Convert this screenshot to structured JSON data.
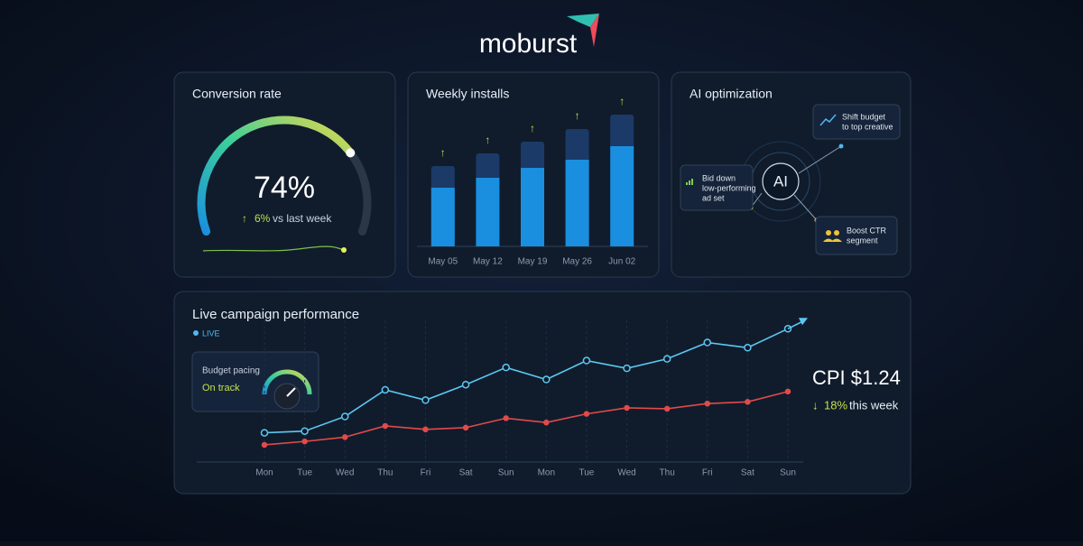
{
  "header": {
    "logo": "moburst"
  },
  "conversion": {
    "title": "Conversion rate",
    "value": 74,
    "value_label": "74%",
    "max": 100,
    "change": "6%",
    "change_text": "vs last week"
  },
  "installs": {
    "title": "Weekly installs",
    "categories": [
      "May 05",
      "May 12",
      "May 19",
      "May 26",
      "Jun 02"
    ],
    "values": [
      89,
      103,
      116,
      130,
      146
    ],
    "highlight": [
      65,
      76,
      87,
      96,
      111
    ],
    "ylim": [
      0,
      160
    ],
    "color": "#1a8fe0",
    "top_color": "#1c3a68"
  },
  "ai": {
    "title": "AI optimization",
    "center": "AI",
    "actions": [
      {
        "lines": [
          "Shift budget",
          "to top creative"
        ]
      },
      {
        "lines": [
          "Bid down",
          "low-performing",
          "ad set"
        ]
      },
      {
        "lines": [
          "Boost CTR",
          "segment"
        ]
      }
    ]
  },
  "campaign": {
    "title": "Live campaign performance",
    "status": "LIVE",
    "pacing": {
      "title": "Budget pacing",
      "status": "On track"
    },
    "cpi": "CPI $1.24",
    "cpi_change": "18%",
    "cpi_change_text": "this week",
    "categories": [
      "Mon",
      "Tue",
      "Wed",
      "Thu",
      "Fri",
      "Sat",
      "Sun",
      "Mon",
      "Tue",
      "Wed",
      "Thu",
      "Fri",
      "Sat",
      "Sun"
    ],
    "series": [
      {
        "color": "#5cc8f2",
        "values": [
          34,
          36,
          53,
          84,
          72,
          90,
          110,
          96,
          118,
          109,
          120,
          139,
          133,
          155
        ]
      },
      {
        "color": "#e24a4a",
        "values": [
          20,
          24,
          29,
          42,
          38,
          40,
          51,
          46,
          56,
          63,
          62,
          68,
          70,
          82
        ]
      }
    ],
    "ylim": [
      0,
      170
    ]
  }
}
